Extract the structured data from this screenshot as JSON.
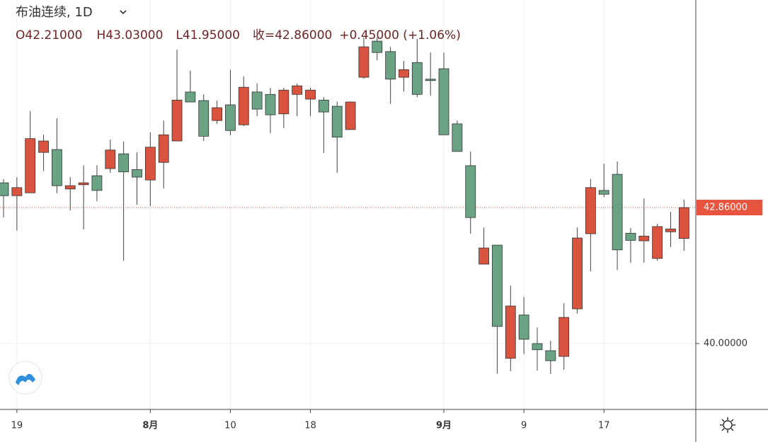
{
  "chart_data": {
    "type": "candlestick",
    "title": "布油连续, 1D",
    "annotations": [
      "O42.21000",
      "H43.03000",
      "L41.95000",
      "收=42.86000",
      "+0.45000 (+1.06%)"
    ],
    "categories": [
      null,
      "19",
      null,
      null,
      null,
      null,
      null,
      null,
      null,
      null,
      null,
      "8月",
      null,
      null,
      null,
      null,
      null,
      "10",
      null,
      null,
      null,
      null,
      null,
      "18",
      null,
      null,
      null,
      null,
      null,
      null,
      null,
      null,
      null,
      "9月",
      null,
      null,
      null,
      null,
      null,
      "9",
      null,
      null,
      null,
      null,
      null,
      "17",
      null,
      null,
      null,
      null,
      null,
      null
    ],
    "open": [
      43.38,
      43.11,
      43.17,
      44.02,
      44.08,
      43.25,
      43.34,
      43.53,
      43.68,
      43.99,
      43.66,
      43.44,
      43.81,
      44.26,
      45.29,
      45.11,
      44.69,
      45.02,
      44.6,
      45.29,
      45.24,
      44.83,
      45.24,
      45.14,
      45.12,
      44.99,
      44.5,
      45.6,
      46.36,
      46.14,
      45.6,
      45.91,
      45.56,
      45.78,
      44.62,
      43.74,
      41.67,
      42.07,
      39.69,
      40.6,
      40.0,
      39.85,
      39.73,
      40.73,
      42.31,
      43.22,
      43.56,
      42.32,
      42.16,
      41.79,
      42.35,
      42.21
    ],
    "high": [
      43.46,
      43.5,
      44.89,
      44.39,
      44.74,
      43.5,
      43.75,
      43.75,
      44.29,
      44.25,
      44.02,
      44.44,
      44.69,
      46.18,
      45.74,
      45.24,
      45.11,
      45.76,
      45.62,
      45.47,
      45.38,
      45.38,
      45.47,
      45.38,
      45.18,
      45.09,
      45.09,
      46.44,
      46.44,
      46.24,
      45.94,
      46.41,
      46.12,
      46.12,
      44.69,
      44.04,
      42.44,
      42.07,
      41.22,
      40.98,
      40.34,
      40.06,
      40.85,
      42.44,
      43.46,
      43.78,
      43.83,
      42.43,
      43.05,
      42.52,
      42.77,
      43.03
    ],
    "low": [
      42.65,
      42.38,
      43.17,
      43.63,
      43.16,
      42.8,
      42.4,
      42.99,
      43.59,
      41.74,
      42.92,
      42.89,
      43.26,
      44.26,
      45.08,
      44.26,
      44.62,
      44.38,
      44.57,
      44.78,
      44.42,
      44.53,
      44.78,
      44.78,
      44.01,
      43.59,
      44.5,
      45.57,
      45.96,
      45.04,
      45.3,
      45.18,
      45.21,
      44.39,
      44.04,
      42.31,
      41.67,
      39.37,
      39.42,
      39.78,
      39.43,
      39.36,
      39.45,
      40.63,
      41.52,
      43.08,
      41.55,
      41.7,
      41.7,
      41.74,
      42.03,
      41.95
    ],
    "close": [
      43.11,
      43.28,
      44.31,
      44.26,
      43.32,
      43.32,
      43.38,
      43.22,
      44.07,
      43.61,
      43.5,
      44.13,
      44.39,
      45.12,
      45.08,
      44.36,
      44.96,
      44.48,
      45.39,
      44.93,
      44.81,
      45.33,
      45.42,
      45.33,
      44.87,
      44.34,
      45.08,
      46.24,
      46.12,
      45.56,
      45.76,
      45.24,
      45.53,
      44.39,
      44.04,
      42.65,
      42.01,
      40.36,
      40.79,
      40.09,
      39.87,
      39.64,
      40.55,
      42.22,
      43.28,
      43.14,
      41.97,
      42.17,
      42.26,
      42.46,
      42.41,
      42.86
    ],
    "up_color": "#d9533f",
    "down_color": "#6aa384",
    "ylim": [
      38.615,
      47.225
    ],
    "yticks": [
      {
        "value": 40,
        "label": "40.00000"
      }
    ],
    "last_price": {
      "value": 42.86,
      "label": "42.86000"
    },
    "last_price_color": "#e8553e",
    "grid": true
  }
}
